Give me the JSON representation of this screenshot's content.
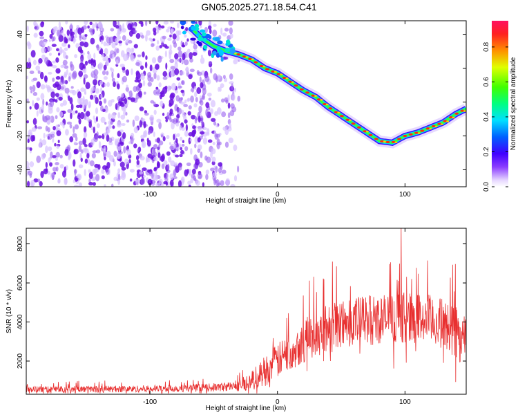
{
  "title": "GN05.2025.271.18.54.C41",
  "chart_data": [
    {
      "type": "heatmap",
      "name": "spectrogram",
      "xlabel": "Height of straight line (km)",
      "ylabel": "Frequency (Hz)",
      "xlim": [
        -197,
        148
      ],
      "ylim": [
        -50,
        48
      ],
      "xticks": [
        -100,
        0,
        100
      ],
      "xtick_labels": [
        "-100",
        "0",
        "100"
      ],
      "yticks": [
        -40,
        -20,
        0,
        20,
        40
      ],
      "ytick_labels": [
        "-40",
        "-20",
        "0",
        "20",
        "40"
      ],
      "ridge": {
        "description": "frequency ridge of maximum spectral amplitude",
        "x": [
          -68,
          -60,
          -50,
          -40,
          -30,
          -20,
          -10,
          0,
          10,
          20,
          30,
          40,
          50,
          60,
          70,
          80,
          90,
          100,
          110,
          120,
          130,
          140,
          148
        ],
        "y": [
          44,
          38,
          33,
          30,
          28,
          25,
          20,
          17,
          12,
          7,
          3,
          -3,
          -8,
          -13,
          -18,
          -23,
          -24,
          -20,
          -18,
          -15,
          -12,
          -7,
          -4
        ]
      },
      "noise_region_x": [
        -197,
        -40
      ],
      "colorbar": {
        "label": "Normalized spectral amplitude",
        "range": [
          0,
          0.95
        ],
        "ticks": [
          0.0,
          0.2,
          0.4,
          0.6,
          0.8
        ],
        "tick_labels": [
          "0.0",
          "0.2",
          "0.4",
          "0.6",
          "0.8"
        ]
      }
    },
    {
      "type": "line",
      "name": "snr",
      "xlabel": "Height of straight line (km)",
      "ylabel": "SNR (10 * v/v)",
      "xlim": [
        -197,
        148
      ],
      "ylim": [
        300,
        8800
      ],
      "xticks": [
        -100,
        0,
        100
      ],
      "xtick_labels": [
        "-100",
        "0",
        "100"
      ],
      "yticks": [
        2000,
        4000,
        6000,
        8000
      ],
      "ytick_labels": [
        "2000",
        "4000",
        "6000",
        "8000"
      ],
      "color": "#e83030",
      "envelope": {
        "x": [
          -197,
          -150,
          -100,
          -60,
          -40,
          -30,
          -20,
          -10,
          0,
          10,
          20,
          30,
          40,
          50,
          60,
          70,
          80,
          90,
          100,
          110,
          120,
          130,
          140,
          148
        ],
        "mean": [
          550,
          560,
          580,
          620,
          680,
          760,
          1000,
          1500,
          2000,
          2500,
          3000,
          3400,
          3700,
          3900,
          4000,
          4100,
          4150,
          4200,
          4250,
          4200,
          4100,
          3900,
          3500,
          3000
        ],
        "spread": [
          160,
          170,
          180,
          200,
          230,
          300,
          500,
          800,
          900,
          1000,
          1100,
          1200,
          1300,
          1300,
          1300,
          1300,
          1300,
          1300,
          1300,
          1300,
          1300,
          1300,
          1400,
          1500
        ]
      },
      "peak": {
        "x": 97,
        "y": 8800
      }
    }
  ]
}
